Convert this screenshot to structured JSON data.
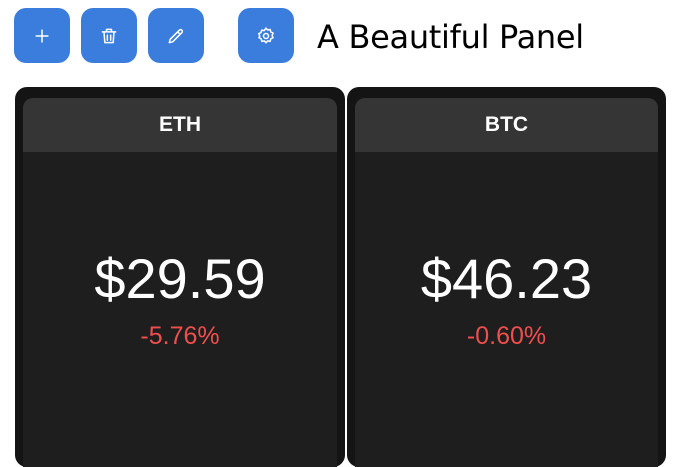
{
  "toolbar": {
    "buttons": [
      {
        "icon": "plus-icon"
      },
      {
        "icon": "trash-icon"
      },
      {
        "icon": "pencil-icon"
      },
      {
        "icon": "gear-icon"
      }
    ],
    "accent": "#3b7ddd"
  },
  "title": "A Beautiful Panel",
  "cards": [
    {
      "symbol": "ETH",
      "price": "$29.59",
      "change": "-5.76%"
    },
    {
      "symbol": "BTC",
      "price": "$46.23",
      "change": "-0.60%"
    }
  ],
  "colors": {
    "negative": "#f04e4e",
    "card_bg": "#1e1e1e",
    "card_header": "#353535"
  }
}
